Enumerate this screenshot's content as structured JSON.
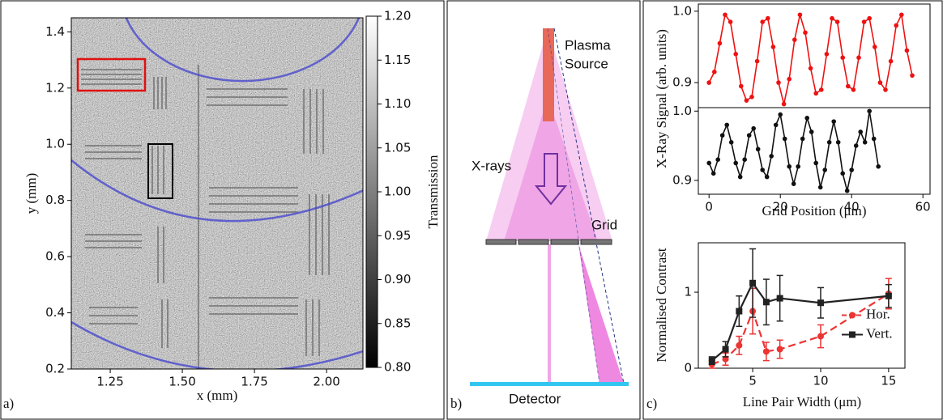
{
  "chart_data": [
    {
      "type": "image",
      "panel": "a)",
      "xlabel": "x (mm)",
      "ylabel": "y (mm)",
      "xlim": [
        1.115,
        2.126
      ],
      "ylim": [
        0.2,
        1.45
      ],
      "xticks": [
        {
          "value": 1.25,
          "label": "1.25"
        },
        {
          "value": 1.5,
          "label": "1.50"
        },
        {
          "value": 1.75,
          "label": "1.75"
        },
        {
          "value": 2,
          "label": "2.00"
        }
      ],
      "yticks": [
        0.2,
        0.4,
        0.6,
        0.8,
        {
          "value": 1,
          "label": "1.0"
        },
        1.2,
        1.4
      ],
      "colorbar": {
        "label": "Transmission",
        "lim": [
          0.8,
          1.2
        ],
        "ticks": [
          {
            "value": 0.8,
            "label": "0.80"
          },
          0.85,
          {
            "value": 0.9,
            "label": "0.90"
          },
          0.95,
          {
            "value": 1,
            "label": "1.00"
          },
          1.05,
          {
            "value": 1.1,
            "label": "1.10"
          },
          1.15,
          {
            "value": 1.2,
            "label": "1.20"
          }
        ]
      }
    },
    {
      "type": "line",
      "ylabel": "X-Ray Signal (arb. units)",
      "xlim": [
        -3,
        62
      ],
      "ylim": [
        0.865,
        1.01
      ],
      "yticks": [
        0.9,
        {
          "value": 1,
          "label": "1.0"
        }
      ],
      "x": [
        0,
        1.5,
        3,
        4.5,
        6,
        7.5,
        9,
        10.5,
        12,
        13.5,
        15,
        16.5,
        18,
        19.5,
        21,
        22.5,
        24,
        25.5,
        27,
        28.5,
        30,
        31.5,
        33,
        34.5,
        36,
        37.5,
        39,
        40.5,
        42,
        43.5,
        45,
        46.5,
        48,
        49.5,
        51,
        52.5,
        54,
        55.5,
        57
      ],
      "series": [
        {
          "color": "#ee1111",
          "values": [
            0.9,
            0.915,
            0.955,
            0.995,
            0.985,
            0.94,
            0.895,
            0.875,
            0.88,
            0.93,
            0.985,
            0.99,
            0.95,
            0.9,
            0.87,
            0.905,
            0.96,
            0.995,
            0.97,
            0.92,
            0.885,
            0.89,
            0.94,
            0.99,
            0.985,
            0.935,
            0.895,
            0.89,
            0.935,
            0.985,
            0.99,
            0.95,
            0.9,
            0.89,
            0.93,
            0.98,
            0.995,
            0.945,
            0.91
          ]
        }
      ]
    },
    {
      "type": "line",
      "xlabel": "Grid Position (μm)",
      "xlim": [
        -3,
        62
      ],
      "ylim": [
        0.88,
        1.005
      ],
      "xticks": [
        0,
        20,
        40,
        60
      ],
      "yticks": [
        0.9,
        {
          "value": 1,
          "label": "1.0"
        }
      ],
      "x": [
        0,
        1.25,
        2.5,
        3.75,
        5,
        6.25,
        7.5,
        8.75,
        10,
        11.25,
        12.5,
        13.75,
        15,
        16.25,
        17.5,
        18.75,
        20,
        21.25,
        22.5,
        23.75,
        25,
        26.25,
        27.5,
        28.75,
        30,
        31.25,
        32.5,
        33.75,
        35,
        36.25,
        37.5,
        38.75,
        40,
        41.25,
        42.5,
        43.75,
        45,
        46.25,
        47.5
      ],
      "series": [
        {
          "color": "#111111",
          "values": [
            0.925,
            0.91,
            0.93,
            0.965,
            0.98,
            0.955,
            0.925,
            0.905,
            0.93,
            0.965,
            0.975,
            0.945,
            0.915,
            0.905,
            0.935,
            0.98,
            0.995,
            0.96,
            0.92,
            0.895,
            0.92,
            0.96,
            0.99,
            0.97,
            0.925,
            0.89,
            0.915,
            0.955,
            0.985,
            0.955,
            0.91,
            0.885,
            0.915,
            0.95,
            0.97,
            0.955,
            1.0,
            0.96,
            0.92
          ]
        }
      ]
    },
    {
      "type": "errorbar",
      "panel": "c)",
      "xlabel": "Line Pair Width (μm)",
      "ylabel": "Normalised Contrast",
      "xlim": [
        1,
        16.2
      ],
      "ylim": [
        0,
        1.65
      ],
      "xticks": [
        5,
        10,
        15
      ],
      "yticks": [
        0,
        1
      ],
      "legend": "center right",
      "x": [
        2,
        3,
        4,
        5,
        6,
        7,
        10,
        15
      ],
      "series": [
        {
          "name": "Hor.",
          "color": "#ee3333",
          "marker": "circle",
          "linestyle": "dashed",
          "values": [
            0.05,
            0.12,
            0.3,
            0.75,
            0.22,
            0.25,
            0.42,
            0.98
          ],
          "errors": [
            0.05,
            0.08,
            0.12,
            0.3,
            0.12,
            0.12,
            0.15,
            0.2
          ]
        },
        {
          "name": "Vert.",
          "color": "#222222",
          "marker": "square",
          "linestyle": "solid",
          "values": [
            0.1,
            0.25,
            0.75,
            1.12,
            0.87,
            0.92,
            0.86,
            0.95
          ],
          "errors": [
            0.05,
            0.1,
            0.2,
            0.45,
            0.3,
            0.3,
            0.2,
            0.15
          ]
        }
      ]
    }
  ],
  "diagram": {
    "panel": "b)",
    "source": [
      "Plasma",
      "Source"
    ],
    "xrays": "X-rays",
    "grid": "Grid",
    "detector": "Detector"
  }
}
